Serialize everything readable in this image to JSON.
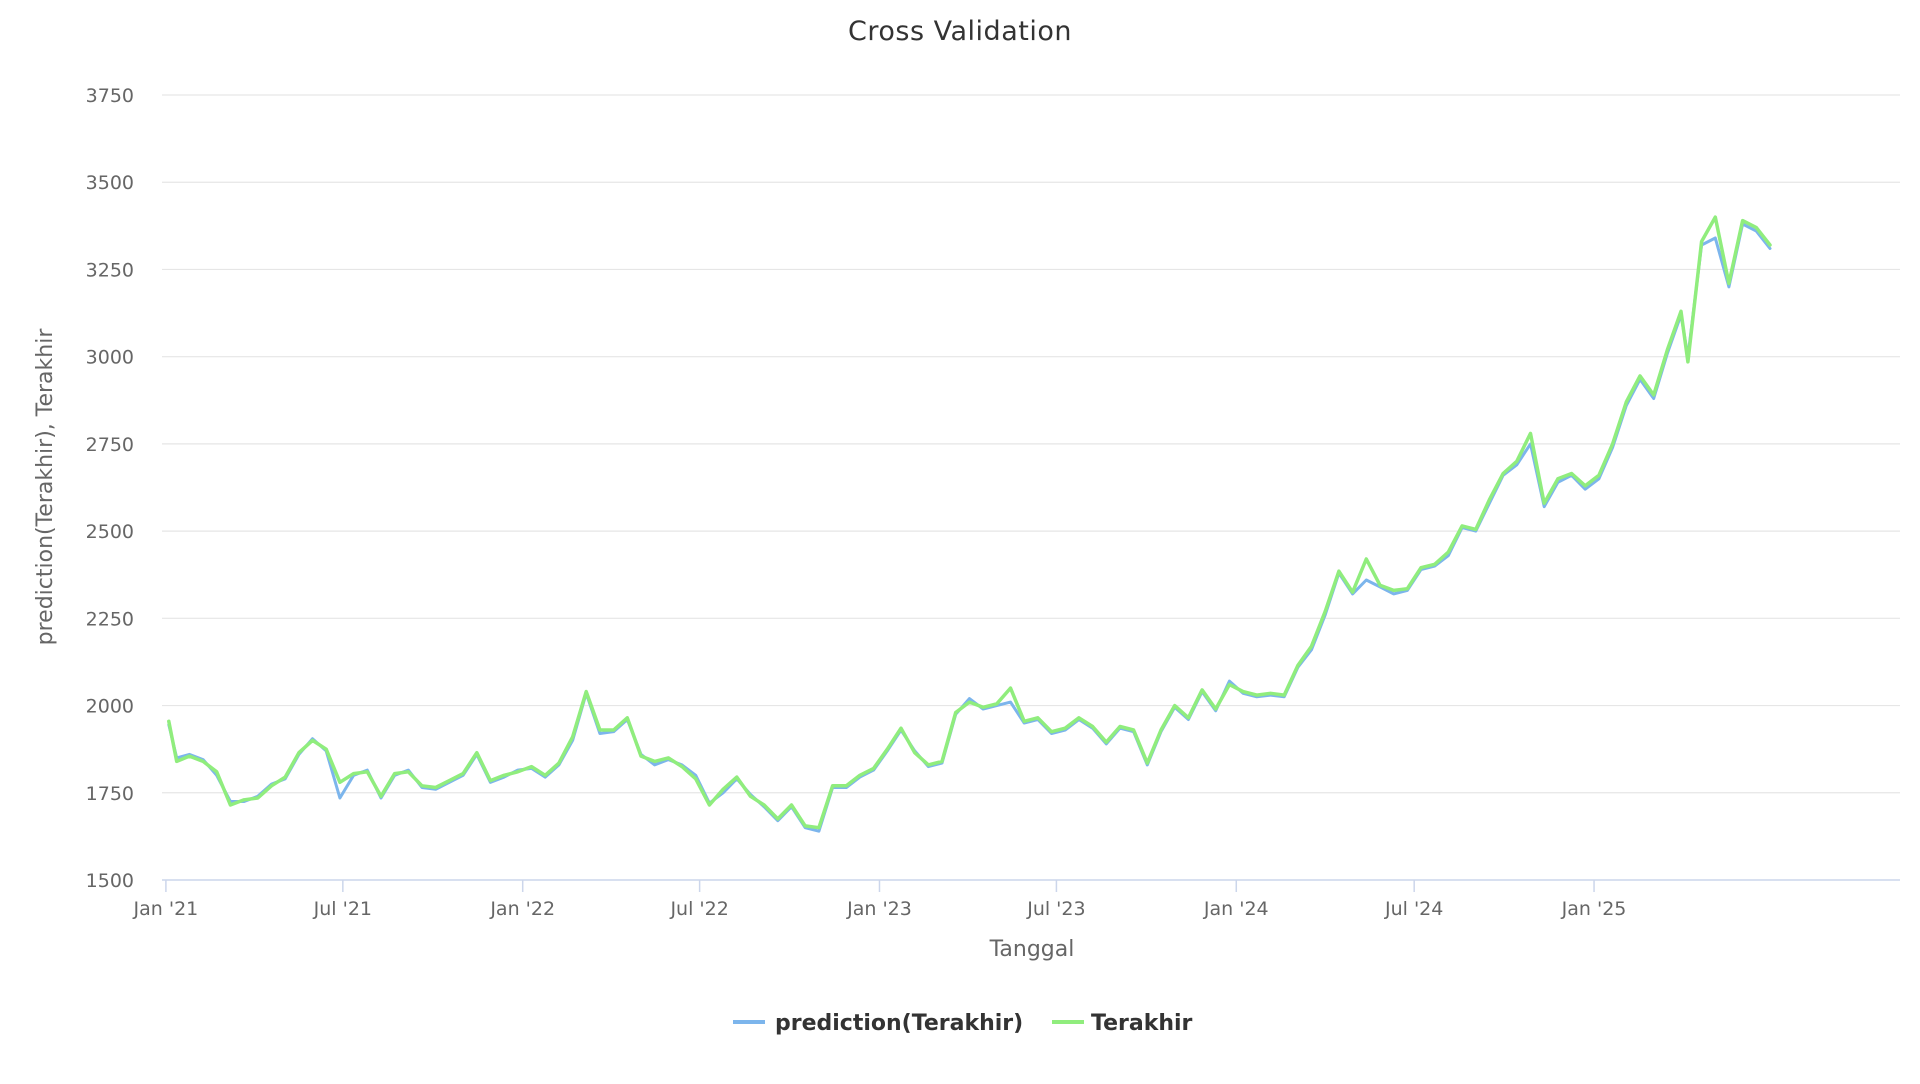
{
  "chart_data": {
    "type": "line",
    "title": "Cross Validation",
    "xlabel": "Tanggal",
    "ylabel": "prediction(Terakhir), Terakhir",
    "x_range": [
      "2020-12-28",
      "2025-11-10"
    ],
    "ylim": [
      1500,
      3750
    ],
    "y_ticks": [
      1500,
      1750,
      2000,
      2250,
      2500,
      2750,
      3000,
      3250,
      3500,
      3750
    ],
    "x_ticks": [
      {
        "date": "2021-01-01",
        "label": "Jan '21"
      },
      {
        "date": "2021-07-01",
        "label": "Jul '21"
      },
      {
        "date": "2022-01-01",
        "label": "Jan '22"
      },
      {
        "date": "2022-07-01",
        "label": "Jul '22"
      },
      {
        "date": "2023-01-01",
        "label": "Jan '23"
      },
      {
        "date": "2023-07-01",
        "label": "Jul '23"
      },
      {
        "date": "2024-01-01",
        "label": "Jan '24"
      },
      {
        "date": "2024-07-01",
        "label": "Jul '24"
      },
      {
        "date": "2025-01-01",
        "label": "Jan '25"
      }
    ],
    "grid": true,
    "legend_position": "bottom-center",
    "series": [
      {
        "name": "prediction(Terakhir)",
        "color": "#7cb5ec",
        "points": [
          [
            "2021-01-04",
            1945
          ],
          [
            "2021-01-12",
            1850
          ],
          [
            "2021-01-25",
            1860
          ],
          [
            "2021-02-08",
            1845
          ],
          [
            "2021-02-22",
            1800
          ],
          [
            "2021-03-08",
            1725
          ],
          [
            "2021-03-22",
            1725
          ],
          [
            "2021-04-05",
            1740
          ],
          [
            "2021-04-19",
            1775
          ],
          [
            "2021-05-03",
            1790
          ],
          [
            "2021-05-17",
            1860
          ],
          [
            "2021-05-31",
            1905
          ],
          [
            "2021-06-14",
            1870
          ],
          [
            "2021-06-28",
            1735
          ],
          [
            "2021-07-12",
            1800
          ],
          [
            "2021-07-26",
            1815
          ],
          [
            "2021-08-09",
            1735
          ],
          [
            "2021-08-23",
            1800
          ],
          [
            "2021-09-06",
            1815
          ],
          [
            "2021-09-20",
            1765
          ],
          [
            "2021-10-04",
            1760
          ],
          [
            "2021-10-18",
            1780
          ],
          [
            "2021-11-01",
            1800
          ],
          [
            "2021-11-15",
            1860
          ],
          [
            "2021-11-29",
            1780
          ],
          [
            "2021-12-13",
            1795
          ],
          [
            "2021-12-27",
            1815
          ],
          [
            "2022-01-10",
            1820
          ],
          [
            "2022-01-24",
            1795
          ],
          [
            "2022-02-07",
            1830
          ],
          [
            "2022-02-21",
            1900
          ],
          [
            "2022-03-07",
            2035
          ],
          [
            "2022-03-21",
            1920
          ],
          [
            "2022-04-04",
            1925
          ],
          [
            "2022-04-18",
            1960
          ],
          [
            "2022-05-02",
            1860
          ],
          [
            "2022-05-16",
            1830
          ],
          [
            "2022-05-30",
            1845
          ],
          [
            "2022-06-13",
            1830
          ],
          [
            "2022-06-27",
            1800
          ],
          [
            "2022-07-11",
            1720
          ],
          [
            "2022-07-25",
            1750
          ],
          [
            "2022-08-08",
            1790
          ],
          [
            "2022-08-22",
            1745
          ],
          [
            "2022-09-05",
            1710
          ],
          [
            "2022-09-19",
            1670
          ],
          [
            "2022-10-03",
            1710
          ],
          [
            "2022-10-17",
            1650
          ],
          [
            "2022-10-31",
            1640
          ],
          [
            "2022-11-14",
            1765
          ],
          [
            "2022-11-28",
            1765
          ],
          [
            "2022-12-12",
            1795
          ],
          [
            "2022-12-26",
            1815
          ],
          [
            "2023-01-09",
            1870
          ],
          [
            "2023-01-23",
            1930
          ],
          [
            "2023-02-06",
            1870
          ],
          [
            "2023-02-20",
            1825
          ],
          [
            "2023-03-06",
            1835
          ],
          [
            "2023-03-20",
            1975
          ],
          [
            "2023-04-03",
            2020
          ],
          [
            "2023-04-17",
            1990
          ],
          [
            "2023-05-01",
            2000
          ],
          [
            "2023-05-15",
            2010
          ],
          [
            "2023-05-29",
            1950
          ],
          [
            "2023-06-12",
            1960
          ],
          [
            "2023-06-26",
            1920
          ],
          [
            "2023-07-10",
            1930
          ],
          [
            "2023-07-24",
            1960
          ],
          [
            "2023-08-07",
            1935
          ],
          [
            "2023-08-21",
            1890
          ],
          [
            "2023-09-04",
            1935
          ],
          [
            "2023-09-18",
            1925
          ],
          [
            "2023-10-02",
            1830
          ],
          [
            "2023-10-16",
            1925
          ],
          [
            "2023-10-30",
            1995
          ],
          [
            "2023-11-13",
            1960
          ],
          [
            "2023-11-27",
            2040
          ],
          [
            "2023-12-11",
            1985
          ],
          [
            "2023-12-25",
            2070
          ],
          [
            "2024-01-08",
            2035
          ],
          [
            "2024-01-22",
            2025
          ],
          [
            "2024-02-05",
            2030
          ],
          [
            "2024-02-19",
            2025
          ],
          [
            "2024-03-04",
            2110
          ],
          [
            "2024-03-18",
            2160
          ],
          [
            "2024-04-01",
            2260
          ],
          [
            "2024-04-15",
            2380
          ],
          [
            "2024-04-29",
            2320
          ],
          [
            "2024-05-13",
            2360
          ],
          [
            "2024-05-27",
            2340
          ],
          [
            "2024-06-10",
            2320
          ],
          [
            "2024-06-24",
            2330
          ],
          [
            "2024-07-08",
            2390
          ],
          [
            "2024-07-22",
            2400
          ],
          [
            "2024-08-05",
            2430
          ],
          [
            "2024-08-19",
            2510
          ],
          [
            "2024-09-02",
            2500
          ],
          [
            "2024-09-16",
            2580
          ],
          [
            "2024-09-30",
            2660
          ],
          [
            "2024-10-14",
            2690
          ],
          [
            "2024-10-28",
            2750
          ],
          [
            "2024-11-11",
            2570
          ],
          [
            "2024-11-25",
            2640
          ],
          [
            "2024-12-09",
            2660
          ],
          [
            "2024-12-23",
            2620
          ],
          [
            "2025-01-06",
            2650
          ],
          [
            "2025-01-20",
            2740
          ],
          [
            "2025-02-03",
            2860
          ],
          [
            "2025-02-17",
            2935
          ],
          [
            "2025-03-03",
            2880
          ],
          [
            "2025-03-17",
            3010
          ],
          [
            "2025-03-31",
            3120
          ],
          [
            "2025-04-07",
            3000
          ],
          [
            "2025-04-21",
            3320
          ],
          [
            "2025-05-05",
            3340
          ],
          [
            "2025-05-19",
            3200
          ],
          [
            "2025-06-02",
            3380
          ],
          [
            "2025-06-16",
            3360
          ],
          [
            "2025-06-30",
            3310
          ]
        ]
      },
      {
        "name": "Terakhir",
        "color": "#90ed7d",
        "points": [
          [
            "2021-01-04",
            1955
          ],
          [
            "2021-01-12",
            1840
          ],
          [
            "2021-01-25",
            1855
          ],
          [
            "2021-02-08",
            1840
          ],
          [
            "2021-02-22",
            1810
          ],
          [
            "2021-03-08",
            1715
          ],
          [
            "2021-03-22",
            1730
          ],
          [
            "2021-04-05",
            1735
          ],
          [
            "2021-04-19",
            1770
          ],
          [
            "2021-05-03",
            1795
          ],
          [
            "2021-05-17",
            1865
          ],
          [
            "2021-05-31",
            1900
          ],
          [
            "2021-06-14",
            1875
          ],
          [
            "2021-06-28",
            1780
          ],
          [
            "2021-07-12",
            1805
          ],
          [
            "2021-07-26",
            1810
          ],
          [
            "2021-08-09",
            1740
          ],
          [
            "2021-08-23",
            1805
          ],
          [
            "2021-09-06",
            1810
          ],
          [
            "2021-09-20",
            1770
          ],
          [
            "2021-10-04",
            1765
          ],
          [
            "2021-10-18",
            1785
          ],
          [
            "2021-11-01",
            1805
          ],
          [
            "2021-11-15",
            1865
          ],
          [
            "2021-11-29",
            1785
          ],
          [
            "2021-12-13",
            1800
          ],
          [
            "2021-12-27",
            1810
          ],
          [
            "2022-01-10",
            1825
          ],
          [
            "2022-01-24",
            1800
          ],
          [
            "2022-02-07",
            1835
          ],
          [
            "2022-02-21",
            1910
          ],
          [
            "2022-03-07",
            2040
          ],
          [
            "2022-03-21",
            1930
          ],
          [
            "2022-04-04",
            1930
          ],
          [
            "2022-04-18",
            1965
          ],
          [
            "2022-05-02",
            1855
          ],
          [
            "2022-05-16",
            1840
          ],
          [
            "2022-05-30",
            1850
          ],
          [
            "2022-06-13",
            1825
          ],
          [
            "2022-06-27",
            1790
          ],
          [
            "2022-07-11",
            1715
          ],
          [
            "2022-07-25",
            1760
          ],
          [
            "2022-08-08",
            1795
          ],
          [
            "2022-08-22",
            1740
          ],
          [
            "2022-09-05",
            1715
          ],
          [
            "2022-09-19",
            1675
          ],
          [
            "2022-10-03",
            1715
          ],
          [
            "2022-10-17",
            1655
          ],
          [
            "2022-10-31",
            1650
          ],
          [
            "2022-11-14",
            1770
          ],
          [
            "2022-11-28",
            1770
          ],
          [
            "2022-12-12",
            1800
          ],
          [
            "2022-12-26",
            1820
          ],
          [
            "2023-01-09",
            1875
          ],
          [
            "2023-01-23",
            1935
          ],
          [
            "2023-02-06",
            1865
          ],
          [
            "2023-02-20",
            1830
          ],
          [
            "2023-03-06",
            1840
          ],
          [
            "2023-03-20",
            1980
          ],
          [
            "2023-04-03",
            2010
          ],
          [
            "2023-04-17",
            1995
          ],
          [
            "2023-05-01",
            2005
          ],
          [
            "2023-05-15",
            2050
          ],
          [
            "2023-05-29",
            1955
          ],
          [
            "2023-06-12",
            1965
          ],
          [
            "2023-06-26",
            1925
          ],
          [
            "2023-07-10",
            1935
          ],
          [
            "2023-07-24",
            1965
          ],
          [
            "2023-08-07",
            1940
          ],
          [
            "2023-08-21",
            1895
          ],
          [
            "2023-09-04",
            1940
          ],
          [
            "2023-09-18",
            1930
          ],
          [
            "2023-10-02",
            1835
          ],
          [
            "2023-10-16",
            1930
          ],
          [
            "2023-10-30",
            2000
          ],
          [
            "2023-11-13",
            1965
          ],
          [
            "2023-11-27",
            2045
          ],
          [
            "2023-12-11",
            1990
          ],
          [
            "2023-12-25",
            2060
          ],
          [
            "2024-01-08",
            2040
          ],
          [
            "2024-01-22",
            2030
          ],
          [
            "2024-02-05",
            2035
          ],
          [
            "2024-02-19",
            2030
          ],
          [
            "2024-03-04",
            2115
          ],
          [
            "2024-03-18",
            2170
          ],
          [
            "2024-04-01",
            2270
          ],
          [
            "2024-04-15",
            2385
          ],
          [
            "2024-04-29",
            2325
          ],
          [
            "2024-05-13",
            2420
          ],
          [
            "2024-05-27",
            2345
          ],
          [
            "2024-06-10",
            2330
          ],
          [
            "2024-06-24",
            2335
          ],
          [
            "2024-07-08",
            2395
          ],
          [
            "2024-07-22",
            2405
          ],
          [
            "2024-08-05",
            2440
          ],
          [
            "2024-08-19",
            2515
          ],
          [
            "2024-09-02",
            2505
          ],
          [
            "2024-09-16",
            2590
          ],
          [
            "2024-09-30",
            2665
          ],
          [
            "2024-10-14",
            2700
          ],
          [
            "2024-10-28",
            2780
          ],
          [
            "2024-11-11",
            2580
          ],
          [
            "2024-11-25",
            2650
          ],
          [
            "2024-12-09",
            2665
          ],
          [
            "2024-12-23",
            2630
          ],
          [
            "2025-01-06",
            2660
          ],
          [
            "2025-01-20",
            2750
          ],
          [
            "2025-02-03",
            2870
          ],
          [
            "2025-02-17",
            2945
          ],
          [
            "2025-03-03",
            2890
          ],
          [
            "2025-03-17",
            3020
          ],
          [
            "2025-03-31",
            3130
          ],
          [
            "2025-04-07",
            2985
          ],
          [
            "2025-04-21",
            3330
          ],
          [
            "2025-05-05",
            3400
          ],
          [
            "2025-05-19",
            3210
          ],
          [
            "2025-06-02",
            3390
          ],
          [
            "2025-06-16",
            3370
          ],
          [
            "2025-06-30",
            3320
          ]
        ]
      }
    ]
  }
}
